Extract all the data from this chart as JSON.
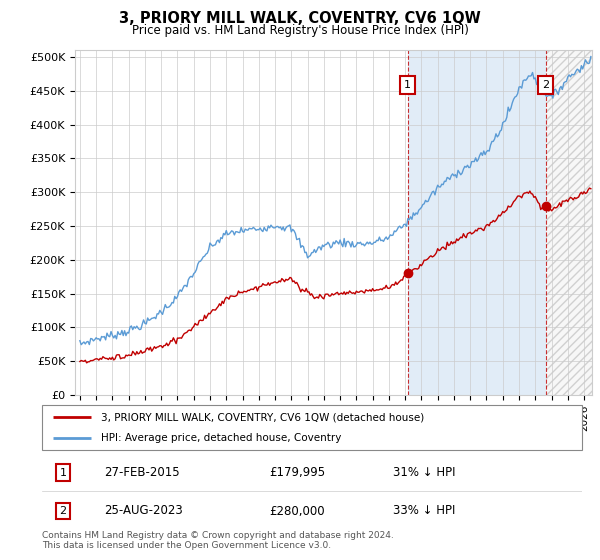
{
  "title": "3, PRIORY MILL WALK, COVENTRY, CV6 1QW",
  "subtitle": "Price paid vs. HM Land Registry's House Price Index (HPI)",
  "ylabel_ticks": [
    "£0",
    "£50K",
    "£100K",
    "£150K",
    "£200K",
    "£250K",
    "£300K",
    "£350K",
    "£400K",
    "£450K",
    "£500K"
  ],
  "ytick_values": [
    0,
    50000,
    100000,
    150000,
    200000,
    250000,
    300000,
    350000,
    400000,
    450000,
    500000
  ],
  "ylim": [
    0,
    510000
  ],
  "xlim_start": 1994.7,
  "xlim_end": 2026.5,
  "hpi_color": "#5b9bd5",
  "price_color": "#c00000",
  "sale1_x": 2015.16,
  "sale1_y": 179995,
  "sale2_x": 2023.65,
  "sale2_y": 280000,
  "annotation1_label": "1",
  "annotation2_label": "2",
  "legend_label1": "3, PRIORY MILL WALK, COVENTRY, CV6 1QW (detached house)",
  "legend_label2": "HPI: Average price, detached house, Coventry",
  "footer1": "Contains HM Land Registry data © Crown copyright and database right 2024.",
  "footer2": "This data is licensed under the Open Government Licence v3.0.",
  "table_row1": [
    "1",
    "27-FEB-2015",
    "£179,995",
    "31% ↓ HPI"
  ],
  "table_row2": [
    "2",
    "25-AUG-2023",
    "£280,000",
    "33% ↓ HPI"
  ],
  "background_color": "#ffffff",
  "shade_color": "#ddeeff",
  "hatch_color": "#cccccc",
  "grid_color": "#cccccc"
}
